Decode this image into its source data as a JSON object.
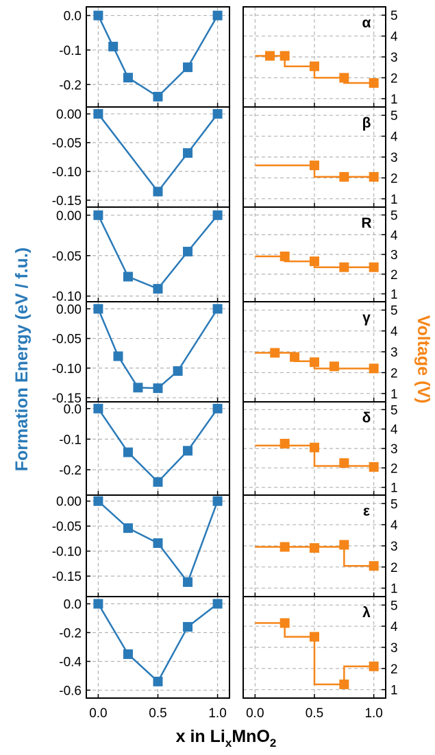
{
  "figure": {
    "ylabel_left": "Formation Energy (eV / f.u.)",
    "ylabel_right": "Voltage (V)",
    "xlabel_prefix": "x in Li",
    "xlabel_sub1": "x",
    "xlabel_mid": "MnO",
    "xlabel_sub2": "2",
    "x_ticks": [
      "0.0",
      "0.5",
      "1.0"
    ],
    "voltage_ticks": [
      "1",
      "2",
      "3",
      "4",
      "5"
    ]
  },
  "colors": {
    "formation": "#2a7ab8",
    "voltage": "#f58518",
    "grid": "#b3b3b3",
    "axis": "#000000"
  },
  "chart_data": [
    {
      "type": "line",
      "phase": "α",
      "formation_energy": {
        "x": [
          0.0,
          0.125,
          0.25,
          0.5,
          0.75,
          1.0
        ],
        "y": [
          0.0,
          -0.09,
          -0.18,
          -0.235,
          -0.15,
          0.0
        ],
        "ylim": [
          -0.265,
          0.025
        ],
        "yticks": [
          0.0,
          -0.1,
          -0.2
        ],
        "yticklabels": [
          "0.0",
          "-0.1",
          "-0.2"
        ]
      },
      "voltage": {
        "markers_x": [
          0.125,
          0.25,
          0.5,
          0.75,
          1.0
        ],
        "markers_y": [
          3.05,
          3.05,
          2.55,
          2.0,
          1.75
        ],
        "steps": [
          [
            0.0,
            0.25,
            3.05
          ],
          [
            0.25,
            0.5,
            2.55
          ],
          [
            0.5,
            0.75,
            2.0
          ],
          [
            0.75,
            1.0,
            1.75
          ]
        ],
        "ylim": [
          0.6,
          5.4
        ]
      }
    },
    {
      "type": "line",
      "phase": "β",
      "formation_energy": {
        "x": [
          0.0,
          0.5,
          0.75,
          1.0
        ],
        "y": [
          0.0,
          -0.135,
          -0.068,
          0.0
        ],
        "ylim": [
          -0.162,
          0.012
        ],
        "yticks": [
          0.0,
          -0.05,
          -0.1,
          -0.15
        ],
        "yticklabels": [
          "0.00",
          "-0.05",
          "-0.10",
          "-0.15"
        ]
      },
      "voltage": {
        "markers_x": [
          0.5,
          0.75,
          1.0
        ],
        "markers_y": [
          2.6,
          2.05,
          2.05
        ],
        "steps": [
          [
            0.0,
            0.5,
            2.6
          ],
          [
            0.5,
            1.0,
            2.05
          ]
        ],
        "ylim": [
          0.6,
          5.4
        ]
      }
    },
    {
      "type": "line",
      "phase": "R",
      "formation_energy": {
        "x": [
          0.0,
          0.25,
          0.5,
          0.75,
          1.0
        ],
        "y": [
          0.0,
          -0.076,
          -0.091,
          -0.045,
          0.0
        ],
        "ylim": [
          -0.107,
          0.01
        ],
        "yticks": [
          0.0,
          -0.05,
          -0.1
        ],
        "yticklabels": [
          "0.00",
          "-0.05",
          "-0.10"
        ]
      },
      "voltage": {
        "markers_x": [
          0.25,
          0.5,
          0.75,
          1.0
        ],
        "markers_y": [
          2.9,
          2.65,
          2.35,
          2.35
        ],
        "steps": [
          [
            0.0,
            0.25,
            2.9
          ],
          [
            0.25,
            0.5,
            2.65
          ],
          [
            0.5,
            1.0,
            2.35
          ]
        ],
        "ylim": [
          0.6,
          5.4
        ]
      }
    },
    {
      "type": "line",
      "phase": "γ",
      "formation_energy": {
        "x": [
          0.0,
          0.167,
          0.333,
          0.5,
          0.667,
          1.0
        ],
        "y": [
          0.0,
          -0.08,
          -0.133,
          -0.134,
          -0.105,
          0.0
        ],
        "ylim": [
          -0.157,
          0.012
        ],
        "yticks": [
          0.0,
          -0.05,
          -0.1,
          -0.15
        ],
        "yticklabels": [
          "0.00",
          "-0.05",
          "-0.10",
          "-0.15"
        ]
      },
      "voltage": {
        "markers_x": [
          0.167,
          0.333,
          0.5,
          0.667,
          1.0
        ],
        "markers_y": [
          2.95,
          2.75,
          2.5,
          2.3,
          2.2
        ],
        "steps": [
          [
            0.0,
            0.333,
            2.95
          ],
          [
            0.333,
            0.5,
            2.55
          ],
          [
            0.5,
            1.0,
            2.2
          ]
        ],
        "ylim": [
          0.6,
          5.4
        ]
      }
    },
    {
      "type": "line",
      "phase": "δ",
      "formation_energy": {
        "x": [
          0.0,
          0.25,
          0.5,
          0.75,
          1.0
        ],
        "y": [
          0.0,
          -0.143,
          -0.24,
          -0.138,
          0.0
        ],
        "ylim": [
          -0.283,
          0.022
        ],
        "yticks": [
          0.0,
          -0.1,
          -0.2
        ],
        "yticklabels": [
          "0.0",
          "-0.1",
          "-0.2"
        ]
      },
      "voltage": {
        "markers_x": [
          0.25,
          0.5,
          0.75,
          1.0
        ],
        "markers_y": [
          3.25,
          3.05,
          2.25,
          2.05
        ],
        "steps": [
          [
            0.0,
            0.5,
            3.15
          ],
          [
            0.5,
            1.0,
            2.1
          ]
        ],
        "ylim": [
          0.6,
          5.4
        ]
      }
    },
    {
      "type": "line",
      "phase": "ε",
      "formation_energy": {
        "x": [
          0.0,
          0.25,
          0.5,
          0.75,
          1.0
        ],
        "y": [
          0.0,
          -0.054,
          -0.084,
          -0.162,
          0.0
        ],
        "ylim": [
          -0.191,
          0.012
        ],
        "yticks": [
          0.0,
          -0.05,
          -0.1,
          -0.15
        ],
        "yticklabels": [
          "0.00",
          "-0.05",
          "-0.10",
          "-0.15"
        ]
      },
      "voltage": {
        "markers_x": [
          0.25,
          0.5,
          0.75,
          1.0
        ],
        "markers_y": [
          2.95,
          2.9,
          3.05,
          2.05
        ],
        "steps": [
          [
            0.0,
            0.75,
            2.95
          ],
          [
            0.75,
            1.0,
            2.05
          ]
        ],
        "ylim": [
          0.6,
          5.4
        ]
      }
    },
    {
      "type": "line",
      "phase": "λ",
      "formation_energy": {
        "x": [
          0.0,
          0.25,
          0.5,
          0.75,
          1.0
        ],
        "y": [
          0.0,
          -0.35,
          -0.54,
          -0.16,
          0.0
        ],
        "ylim": [
          -0.655,
          0.05
        ],
        "yticks": [
          0.0,
          -0.2,
          -0.4,
          -0.6
        ],
        "yticklabels": [
          "0.0",
          "-0.2",
          "-0.4",
          "-0.6"
        ]
      },
      "voltage": {
        "markers_x": [
          0.25,
          0.5,
          0.75,
          1.0
        ],
        "markers_y": [
          4.15,
          3.5,
          1.25,
          2.1
        ],
        "steps": [
          [
            0.0,
            0.25,
            4.15
          ],
          [
            0.25,
            0.5,
            3.5
          ],
          [
            0.5,
            0.75,
            1.25
          ],
          [
            0.75,
            1.0,
            2.1
          ]
        ],
        "ylim": [
          0.6,
          5.4
        ]
      }
    }
  ]
}
